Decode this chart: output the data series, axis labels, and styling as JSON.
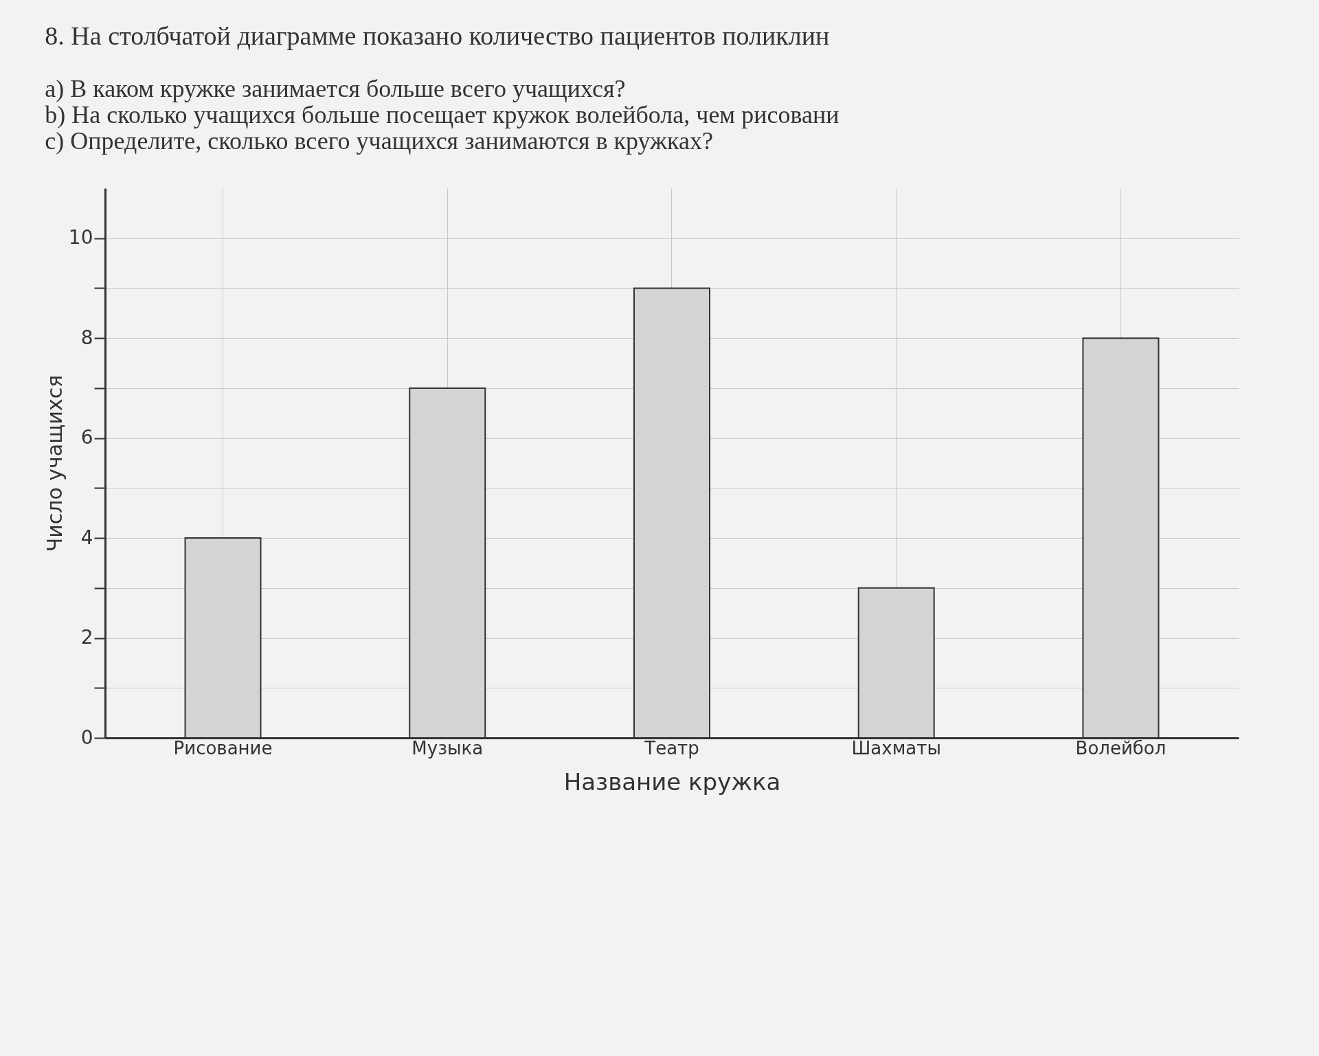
{
  "chart_data": {
    "type": "bar",
    "title": "8. На столбчатой диаграмме показано количество пациентов поликлин",
    "annotations": [
      "а) В каком кружке занимается больше всего учащихся?",
      "b) На сколько учащихся больше посещает кружок волейбола, чем рисовани",
      "c) Определите, сколько всего учащихся занимаются в кружках?"
    ],
    "xlabel": "Название кружка",
    "ylabel": "Число учащихся",
    "categories": [
      "Рисование",
      "Музыка",
      "Театр",
      "Шахматы",
      "Волейбол"
    ],
    "values": [
      4,
      7,
      9,
      3,
      8
    ],
    "color": "#d4d4d4",
    "ylim": [
      0,
      11
    ],
    "yticks": [
      0,
      {
        "value": 1,
        "label": null
      },
      2,
      {
        "value": 3,
        "label": null
      },
      4,
      {
        "value": 5,
        "label": null
      },
      6,
      {
        "value": 7,
        "label": null
      },
      8,
      {
        "value": 9,
        "label": null
      },
      10
    ],
    "grid": true
  }
}
